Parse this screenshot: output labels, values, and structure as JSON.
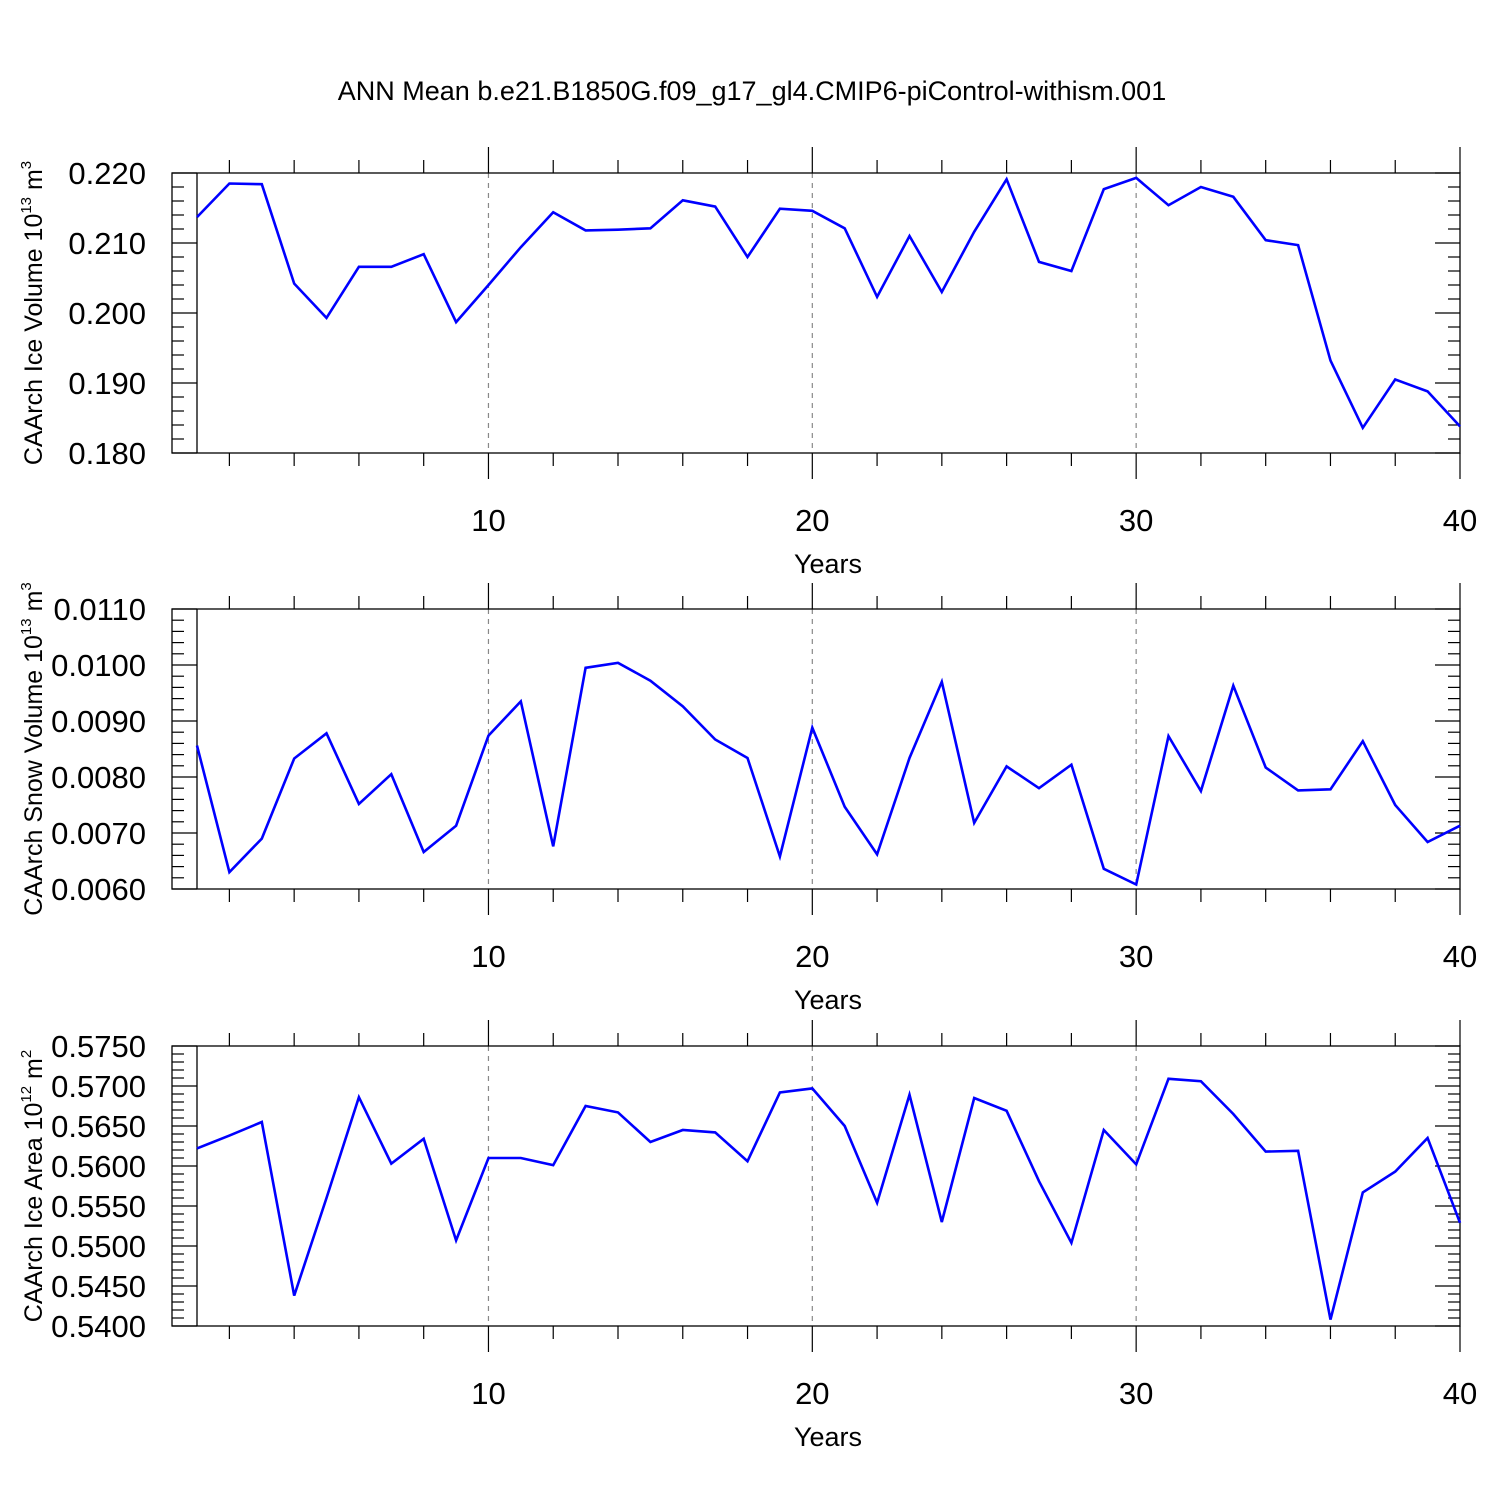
{
  "title": "ANN Mean b.e21.B1850G.f09_g17_gl4.CMIP6-piControl-withism.001",
  "colors": {
    "line": "#0000ff",
    "axis": "#000000",
    "grid": "#888888"
  },
  "chart_data": [
    {
      "type": "line",
      "ylabel_main": "CAArch Ice Volume 10",
      "ylabel_sup": "13",
      "ylabel_unit": " m",
      "ylabel_unit_sup": "3",
      "xlabel": "Years",
      "xlim": [
        1,
        40
      ],
      "ylim": [
        0.18,
        0.22
      ],
      "yticks": [
        0.18,
        0.19,
        0.2,
        0.21,
        0.22
      ],
      "ytick_labels": [
        "0.180",
        "0.190",
        "0.200",
        "0.210",
        "0.220"
      ],
      "xticks": [
        10,
        20,
        30,
        40
      ],
      "xtick_labels": [
        "10",
        "20",
        "30",
        "40"
      ],
      "x": [
        1,
        2,
        3,
        4,
        5,
        6,
        7,
        8,
        9,
        10,
        11,
        12,
        13,
        14,
        15,
        16,
        17,
        18,
        19,
        20,
        21,
        22,
        23,
        24,
        25,
        26,
        27,
        28,
        29,
        30,
        31,
        32,
        33,
        34,
        35,
        36,
        37,
        38,
        39,
        40
      ],
      "values": [
        0.2137,
        0.2185,
        0.2184,
        0.2042,
        0.1993,
        0.2066,
        0.2066,
        0.2084,
        0.1987,
        0.204,
        0.2094,
        0.2144,
        0.2118,
        0.2119,
        0.2121,
        0.2161,
        0.2152,
        0.208,
        0.2149,
        0.2146,
        0.2121,
        0.2023,
        0.211,
        0.203,
        0.2116,
        0.2191,
        0.2073,
        0.206,
        0.2177,
        0.2193,
        0.2154,
        0.218,
        0.2166,
        0.2104,
        0.2097,
        0.1932,
        0.1836,
        0.1905,
        0.1888,
        0.1838
      ]
    },
    {
      "type": "line",
      "ylabel_main": "CAArch Snow Volume 10",
      "ylabel_sup": "13",
      "ylabel_unit": " m",
      "ylabel_unit_sup": "3",
      "xlabel": "Years",
      "xlim": [
        1,
        40
      ],
      "ylim": [
        0.006,
        0.011
      ],
      "yticks": [
        0.006,
        0.007,
        0.008,
        0.009,
        0.01,
        0.011
      ],
      "ytick_labels": [
        "0.0060",
        "0.0070",
        "0.0080",
        "0.0090",
        "0.0100",
        "0.0110"
      ],
      "xticks": [
        10,
        20,
        30,
        40
      ],
      "xtick_labels": [
        "10",
        "20",
        "30",
        "40"
      ],
      "x": [
        1,
        2,
        3,
        4,
        5,
        6,
        7,
        8,
        9,
        10,
        11,
        12,
        13,
        14,
        15,
        16,
        17,
        18,
        19,
        20,
        21,
        22,
        23,
        24,
        25,
        26,
        27,
        28,
        29,
        30,
        31,
        32,
        33,
        34,
        35,
        36,
        37,
        38,
        39,
        40
      ],
      "values": [
        0.00856,
        0.0063,
        0.0069,
        0.00833,
        0.00878,
        0.00752,
        0.00805,
        0.00666,
        0.00713,
        0.00874,
        0.00935,
        0.00676,
        0.00995,
        0.01004,
        0.00972,
        0.00926,
        0.00867,
        0.00834,
        0.00658,
        0.00888,
        0.00747,
        0.00662,
        0.00834,
        0.0097,
        0.00718,
        0.00819,
        0.0078,
        0.00822,
        0.00636,
        0.00608,
        0.00873,
        0.00775,
        0.00963,
        0.00817,
        0.00776,
        0.00778,
        0.00864,
        0.0075,
        0.00684,
        0.00713
      ]
    },
    {
      "type": "line",
      "ylabel_main": "CAArch Ice Area 10",
      "ylabel_sup": "12",
      "ylabel_unit": " m",
      "ylabel_unit_sup": "2",
      "xlabel": "Years",
      "xlim": [
        1,
        40
      ],
      "ylim": [
        0.54,
        0.575
      ],
      "yticks": [
        0.54,
        0.545,
        0.55,
        0.555,
        0.56,
        0.565,
        0.57,
        0.575
      ],
      "ytick_labels": [
        "0.5400",
        "0.5450",
        "0.5500",
        "0.5550",
        "0.5600",
        "0.5650",
        "0.5700",
        "0.5750"
      ],
      "xticks": [
        10,
        20,
        30,
        40
      ],
      "xtick_labels": [
        "10",
        "20",
        "30",
        "40"
      ],
      "x": [
        1,
        2,
        3,
        4,
        5,
        6,
        7,
        8,
        9,
        10,
        11,
        12,
        13,
        14,
        15,
        16,
        17,
        18,
        19,
        20,
        21,
        22,
        23,
        24,
        25,
        26,
        27,
        28,
        29,
        30,
        31,
        32,
        33,
        34,
        35,
        36,
        37,
        38,
        39,
        40
      ],
      "values": [
        0.5622,
        0.5638,
        0.5655,
        0.5438,
        0.556,
        0.5686,
        0.5603,
        0.5634,
        0.5507,
        0.561,
        0.561,
        0.5601,
        0.5675,
        0.5667,
        0.563,
        0.5645,
        0.5642,
        0.5606,
        0.5692,
        0.5697,
        0.565,
        0.5554,
        0.5689,
        0.553,
        0.5685,
        0.5669,
        0.5581,
        0.5504,
        0.5645,
        0.5602,
        0.5709,
        0.5706,
        0.5665,
        0.5618,
        0.5619,
        0.5408,
        0.5567,
        0.5593,
        0.5635,
        0.5529
      ]
    }
  ]
}
